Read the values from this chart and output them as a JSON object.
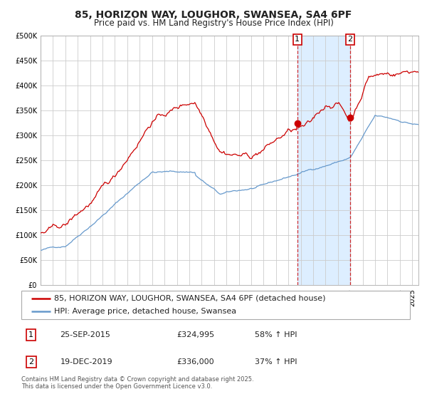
{
  "title": "85, HORIZON WAY, LOUGHOR, SWANSEA, SA4 6PF",
  "subtitle": "Price paid vs. HM Land Registry's House Price Index (HPI)",
  "ylim": [
    0,
    500000
  ],
  "yticks": [
    0,
    50000,
    100000,
    150000,
    200000,
    250000,
    300000,
    350000,
    400000,
    450000,
    500000
  ],
  "ytick_labels": [
    "£0",
    "£50K",
    "£100K",
    "£150K",
    "£200K",
    "£250K",
    "£300K",
    "£350K",
    "£400K",
    "£450K",
    "£500K"
  ],
  "red_line_color": "#cc0000",
  "blue_line_color": "#6699cc",
  "grid_color": "#cccccc",
  "shade_color": "#ddeeff",
  "marker1_year": 2015.75,
  "marker1_value": 324995,
  "marker1_label": "1",
  "marker1_date_str": "25-SEP-2015",
  "marker1_price_str": "£324,995",
  "marker1_hpi_str": "58% ↑ HPI",
  "marker2_year": 2020.0,
  "marker2_value": 336000,
  "marker2_label": "2",
  "marker2_date_str": "19-DEC-2019",
  "marker2_price_str": "£336,000",
  "marker2_hpi_str": "37% ↑ HPI",
  "legend_entry1": "85, HORIZON WAY, LOUGHOR, SWANSEA, SA4 6PF (detached house)",
  "legend_entry2": "HPI: Average price, detached house, Swansea",
  "footer_text": "Contains HM Land Registry data © Crown copyright and database right 2025.\nThis data is licensed under the Open Government Licence v3.0.",
  "title_fontsize": 10,
  "subtitle_fontsize": 8.5,
  "tick_fontsize": 7,
  "legend_fontsize": 8,
  "footer_fontsize": 6
}
